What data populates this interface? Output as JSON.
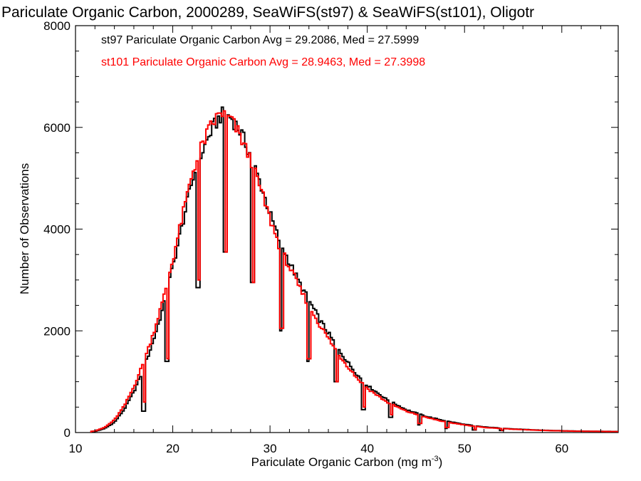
{
  "chart_data": {
    "type": "line",
    "title": "Pariculate Organic Carbon, 2000289, SeaWiFS(st97) & SeaWiFS(st101), Oligotr",
    "xlabel": "Pariculate Organic Carbon (mg m",
    "xlabel_sup": "-3",
    "xlabel_end": ")",
    "ylabel": "Number of Observations",
    "xlim": [
      10,
      65.8
    ],
    "ylim": [
      0,
      8000
    ],
    "xticks": [
      10,
      20,
      30,
      40,
      50,
      60
    ],
    "xtick_labels": [
      "10",
      "20",
      "30",
      "40",
      "50",
      "60"
    ],
    "yticks": [
      0,
      2000,
      4000,
      6000,
      8000
    ],
    "ytick_labels": [
      "0",
      "2000",
      "4000",
      "6000",
      "8000"
    ],
    "grid": false,
    "legend_placement": "top-left",
    "series": [
      {
        "name": "st97 Pariculate Organic Carbon Avg = 29.2086, Med = 27.5999",
        "color": "#000000",
        "x": [
          10,
          12,
          13,
          14,
          15,
          16,
          17,
          18,
          19,
          20,
          21,
          22,
          23,
          24,
          25,
          26,
          27,
          28,
          29,
          30,
          31,
          32,
          33,
          34,
          35,
          36,
          37,
          38,
          39,
          40,
          42,
          44,
          46,
          48,
          50,
          52,
          55,
          58,
          61,
          65.8
        ],
        "y": [
          0,
          20,
          80,
          200,
          450,
          800,
          1250,
          1800,
          2450,
          3250,
          4100,
          4950,
          5500,
          5950,
          6250,
          6200,
          5900,
          5450,
          4900,
          4300,
          3750,
          3350,
          2950,
          2600,
          2250,
          1950,
          1650,
          1380,
          1130,
          930,
          650,
          450,
          320,
          230,
          160,
          110,
          70,
          45,
          30,
          20
        ],
        "dips": [
          [
            17,
            420
          ],
          [
            19.4,
            1400
          ],
          [
            22.6,
            2850
          ],
          [
            25.4,
            3550
          ],
          [
            28.2,
            2950
          ],
          [
            31.1,
            2000
          ],
          [
            33.9,
            1400
          ],
          [
            36.8,
            1000
          ],
          [
            39.6,
            450
          ],
          [
            42.4,
            300
          ],
          [
            45.3,
            150
          ],
          [
            48.1,
            80
          ],
          [
            51,
            50
          ],
          [
            53.8,
            40
          ]
        ]
      },
      {
        "name": "st101 Pariculate Organic Carbon Avg = 28.9463, Med = 27.3998",
        "color": "#ff0000",
        "x": [
          10,
          12,
          13,
          14,
          15,
          16,
          17,
          18,
          19,
          20,
          21,
          22,
          23,
          24,
          25,
          26,
          27,
          28,
          29,
          30,
          31,
          32,
          33,
          34,
          35,
          36,
          37,
          38,
          39,
          40,
          42,
          44,
          46,
          48,
          50,
          52,
          55,
          58,
          61,
          65.8
        ],
        "y": [
          0,
          30,
          100,
          250,
          520,
          900,
          1380,
          1950,
          2600,
          3400,
          4250,
          5100,
          5650,
          6050,
          6300,
          6150,
          5800,
          5350,
          4800,
          4200,
          3650,
          3250,
          2850,
          2500,
          2150,
          1850,
          1550,
          1300,
          1060,
          870,
          600,
          420,
          300,
          210,
          150,
          100,
          65,
          42,
          28,
          18
        ],
        "dips": [
          [
            17.1,
            600
          ],
          [
            19.5,
            1450
          ],
          [
            22.7,
            3000
          ],
          [
            25.5,
            3550
          ],
          [
            28.3,
            2950
          ],
          [
            31.2,
            2050
          ],
          [
            34,
            1450
          ],
          [
            36.9,
            1000
          ],
          [
            39.7,
            500
          ],
          [
            42.5,
            350
          ],
          [
            45.4,
            180
          ],
          [
            48.2,
            100
          ],
          [
            51.1,
            60
          ],
          [
            53.9,
            45
          ]
        ]
      }
    ]
  }
}
